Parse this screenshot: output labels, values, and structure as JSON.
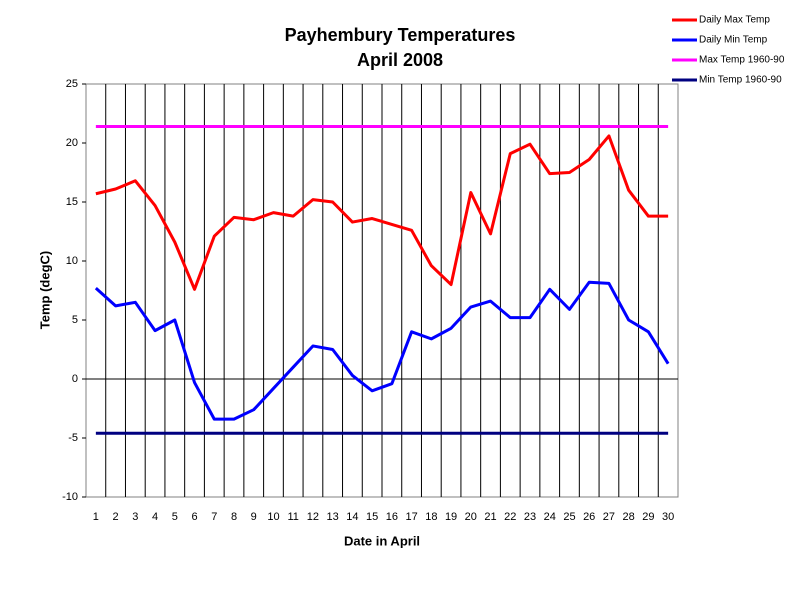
{
  "chart_data": {
    "type": "line",
    "title": [
      "Payhembury Temperatures",
      "April 2008"
    ],
    "x_label": "Date in April",
    "y_label": "Temp (degC)",
    "categories": [
      1,
      2,
      3,
      4,
      5,
      6,
      7,
      8,
      9,
      10,
      11,
      12,
      13,
      14,
      15,
      16,
      17,
      18,
      19,
      20,
      21,
      22,
      23,
      24,
      25,
      26,
      27,
      28,
      29,
      30
    ],
    "ylim": [
      -10,
      25
    ],
    "yticks": [
      -10,
      -5,
      0,
      5,
      10,
      15,
      20,
      25
    ],
    "series": [
      {
        "name": "Daily Max Temp",
        "color": "#ff0000",
        "values": [
          15.7,
          16.1,
          16.8,
          14.7,
          11.6,
          7.6,
          12.1,
          13.7,
          13.5,
          14.1,
          13.8,
          15.2,
          15.0,
          13.3,
          13.6,
          13.1,
          12.6,
          9.6,
          8.0,
          15.8,
          12.3,
          19.1,
          19.9,
          17.4,
          17.5,
          18.6,
          20.6,
          16.0,
          13.8,
          13.8
        ]
      },
      {
        "name": "Daily Min Temp",
        "color": "#0000ff",
        "values": [
          7.7,
          6.2,
          6.5,
          4.1,
          5.0,
          -0.3,
          -3.4,
          -3.4,
          -2.6,
          -0.8,
          1.0,
          2.8,
          2.5,
          0.3,
          -1.0,
          -0.4,
          4.0,
          3.4,
          4.3,
          6.1,
          6.6,
          5.2,
          5.2,
          7.6,
          5.9,
          8.2,
          8.1,
          5.0,
          4.0,
          1.3
        ]
      },
      {
        "name": "Max Temp 1960-90",
        "color": "#ff00ff",
        "values": [
          21.4,
          21.4,
          21.4,
          21.4,
          21.4,
          21.4,
          21.4,
          21.4,
          21.4,
          21.4,
          21.4,
          21.4,
          21.4,
          21.4,
          21.4,
          21.4,
          21.4,
          21.4,
          21.4,
          21.4,
          21.4,
          21.4,
          21.4,
          21.4,
          21.4,
          21.4,
          21.4,
          21.4,
          21.4,
          21.4
        ]
      },
      {
        "name": "Min Temp 1960-90",
        "color": "#000080",
        "values": [
          -4.6,
          -4.6,
          -4.6,
          -4.6,
          -4.6,
          -4.6,
          -4.6,
          -4.6,
          -4.6,
          -4.6,
          -4.6,
          -4.6,
          -4.6,
          -4.6,
          -4.6,
          -4.6,
          -4.6,
          -4.6,
          -4.6,
          -4.6,
          -4.6,
          -4.6,
          -4.6,
          -4.6,
          -4.6,
          -4.6,
          -4.6,
          -4.6,
          -4.6,
          -4.6
        ]
      }
    ]
  }
}
